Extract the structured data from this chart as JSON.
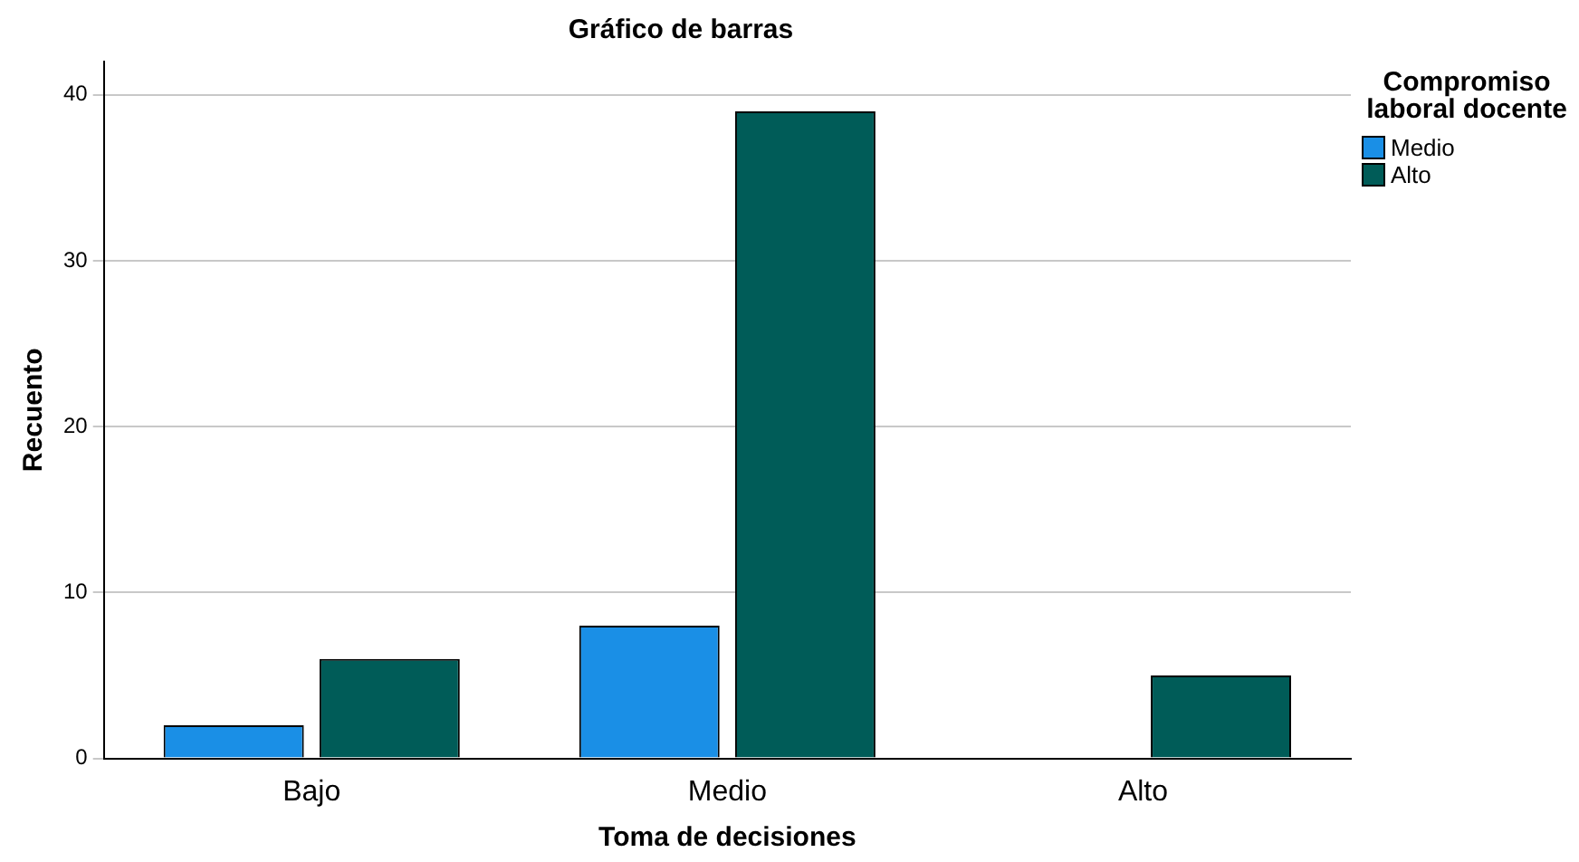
{
  "chart_data": {
    "type": "bar",
    "title": "Gráfico de barras",
    "xlabel": "Toma de decisiones",
    "ylabel": "Recuento",
    "legend_title": "Compromiso laboral docente",
    "categories": [
      "Bajo",
      "Medio",
      "Alto"
    ],
    "series": [
      {
        "name": "Medio",
        "color": "#1a8fe6",
        "values": [
          2,
          8,
          null
        ]
      },
      {
        "name": "Alto",
        "color": "#005c58",
        "values": [
          6,
          39,
          5
        ]
      }
    ],
    "ylim": [
      0,
      42
    ],
    "yticks": [
      0,
      10,
      20,
      30,
      40
    ],
    "grid": "y",
    "legend": "top right"
  }
}
